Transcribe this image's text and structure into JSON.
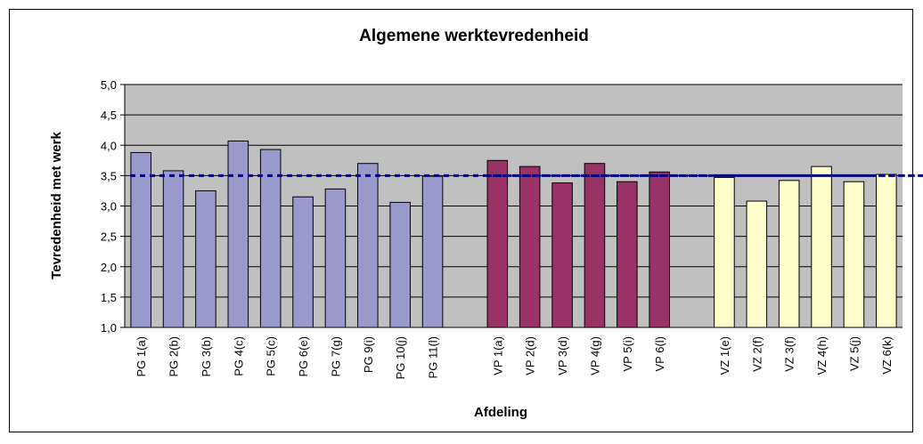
{
  "chart_data": {
    "type": "bar",
    "title": "Algemene werktevredenheid",
    "x_label": "Afdeling",
    "y_label": "Tevredenheid met werk",
    "categories": [
      "PG 1(a)",
      "PG 2(b)",
      "PG 3(b)",
      "PG 4(c)",
      "PG 5(c)",
      "PG 6(e)",
      "PG 7(g)",
      "PG 9(i)",
      "PG 10(j)",
      "PG 11(l)",
      null,
      "VP 1(a)",
      "VP 2(d)",
      "VP 3(d)",
      "VP 4(g)",
      "VP 5(i)",
      "VP 6(l)",
      null,
      "VZ 1(e)",
      "VZ 2(f)",
      "VZ 3(f)",
      "VZ 4(h)",
      "VZ 5(j)",
      "VZ 6(k)"
    ],
    "series": [
      {
        "type": "bar",
        "color": "#9999cc",
        "values": [
          3.88,
          3.58,
          3.25,
          4.07,
          3.93,
          3.15,
          3.28,
          3.7,
          3.06,
          3.49,
          null,
          null,
          null,
          null,
          null,
          null,
          null,
          null,
          null,
          null,
          null,
          null,
          null,
          null
        ]
      },
      {
        "type": "bar",
        "color": "#993366",
        "values": [
          null,
          null,
          null,
          null,
          null,
          null,
          null,
          null,
          null,
          null,
          null,
          3.75,
          3.65,
          3.38,
          3.7,
          3.4,
          3.56,
          null,
          null,
          null,
          null,
          null,
          null,
          null
        ]
      },
      {
        "type": "bar",
        "color": "#ffffcc",
        "values": [
          null,
          null,
          null,
          null,
          null,
          null,
          null,
          null,
          null,
          null,
          null,
          null,
          null,
          null,
          null,
          null,
          null,
          null,
          3.47,
          3.08,
          3.42,
          3.65,
          3.4,
          3.52
        ]
      },
      {
        "type": "line",
        "color": "#000080",
        "dashed": true,
        "values": [
          3.5,
          3.5,
          3.5,
          3.5,
          3.5,
          3.5,
          3.5,
          3.5,
          3.5,
          3.5,
          null,
          3.5,
          3.5,
          3.5,
          3.5,
          3.5,
          3.5,
          null,
          3.5,
          3.5,
          3.5,
          3.5,
          3.5,
          3.5
        ]
      }
    ],
    "ylim": [
      1.0,
      5.0
    ],
    "yticks": [
      {
        "value": 1.0,
        "label": "1,0"
      },
      {
        "value": 1.5,
        "label": "1,5"
      },
      {
        "value": 2.0,
        "label": "2,0"
      },
      {
        "value": 2.5,
        "label": "2,5"
      },
      {
        "value": 3.0,
        "label": "3,0"
      },
      {
        "value": 3.5,
        "label": "3,5"
      },
      {
        "value": 4.0,
        "label": "4,0"
      },
      {
        "value": 4.5,
        "label": "4,5"
      },
      {
        "value": 5.0,
        "label": "5,0"
      }
    ],
    "grid": true,
    "plot_background": "#c0c0c0"
  }
}
